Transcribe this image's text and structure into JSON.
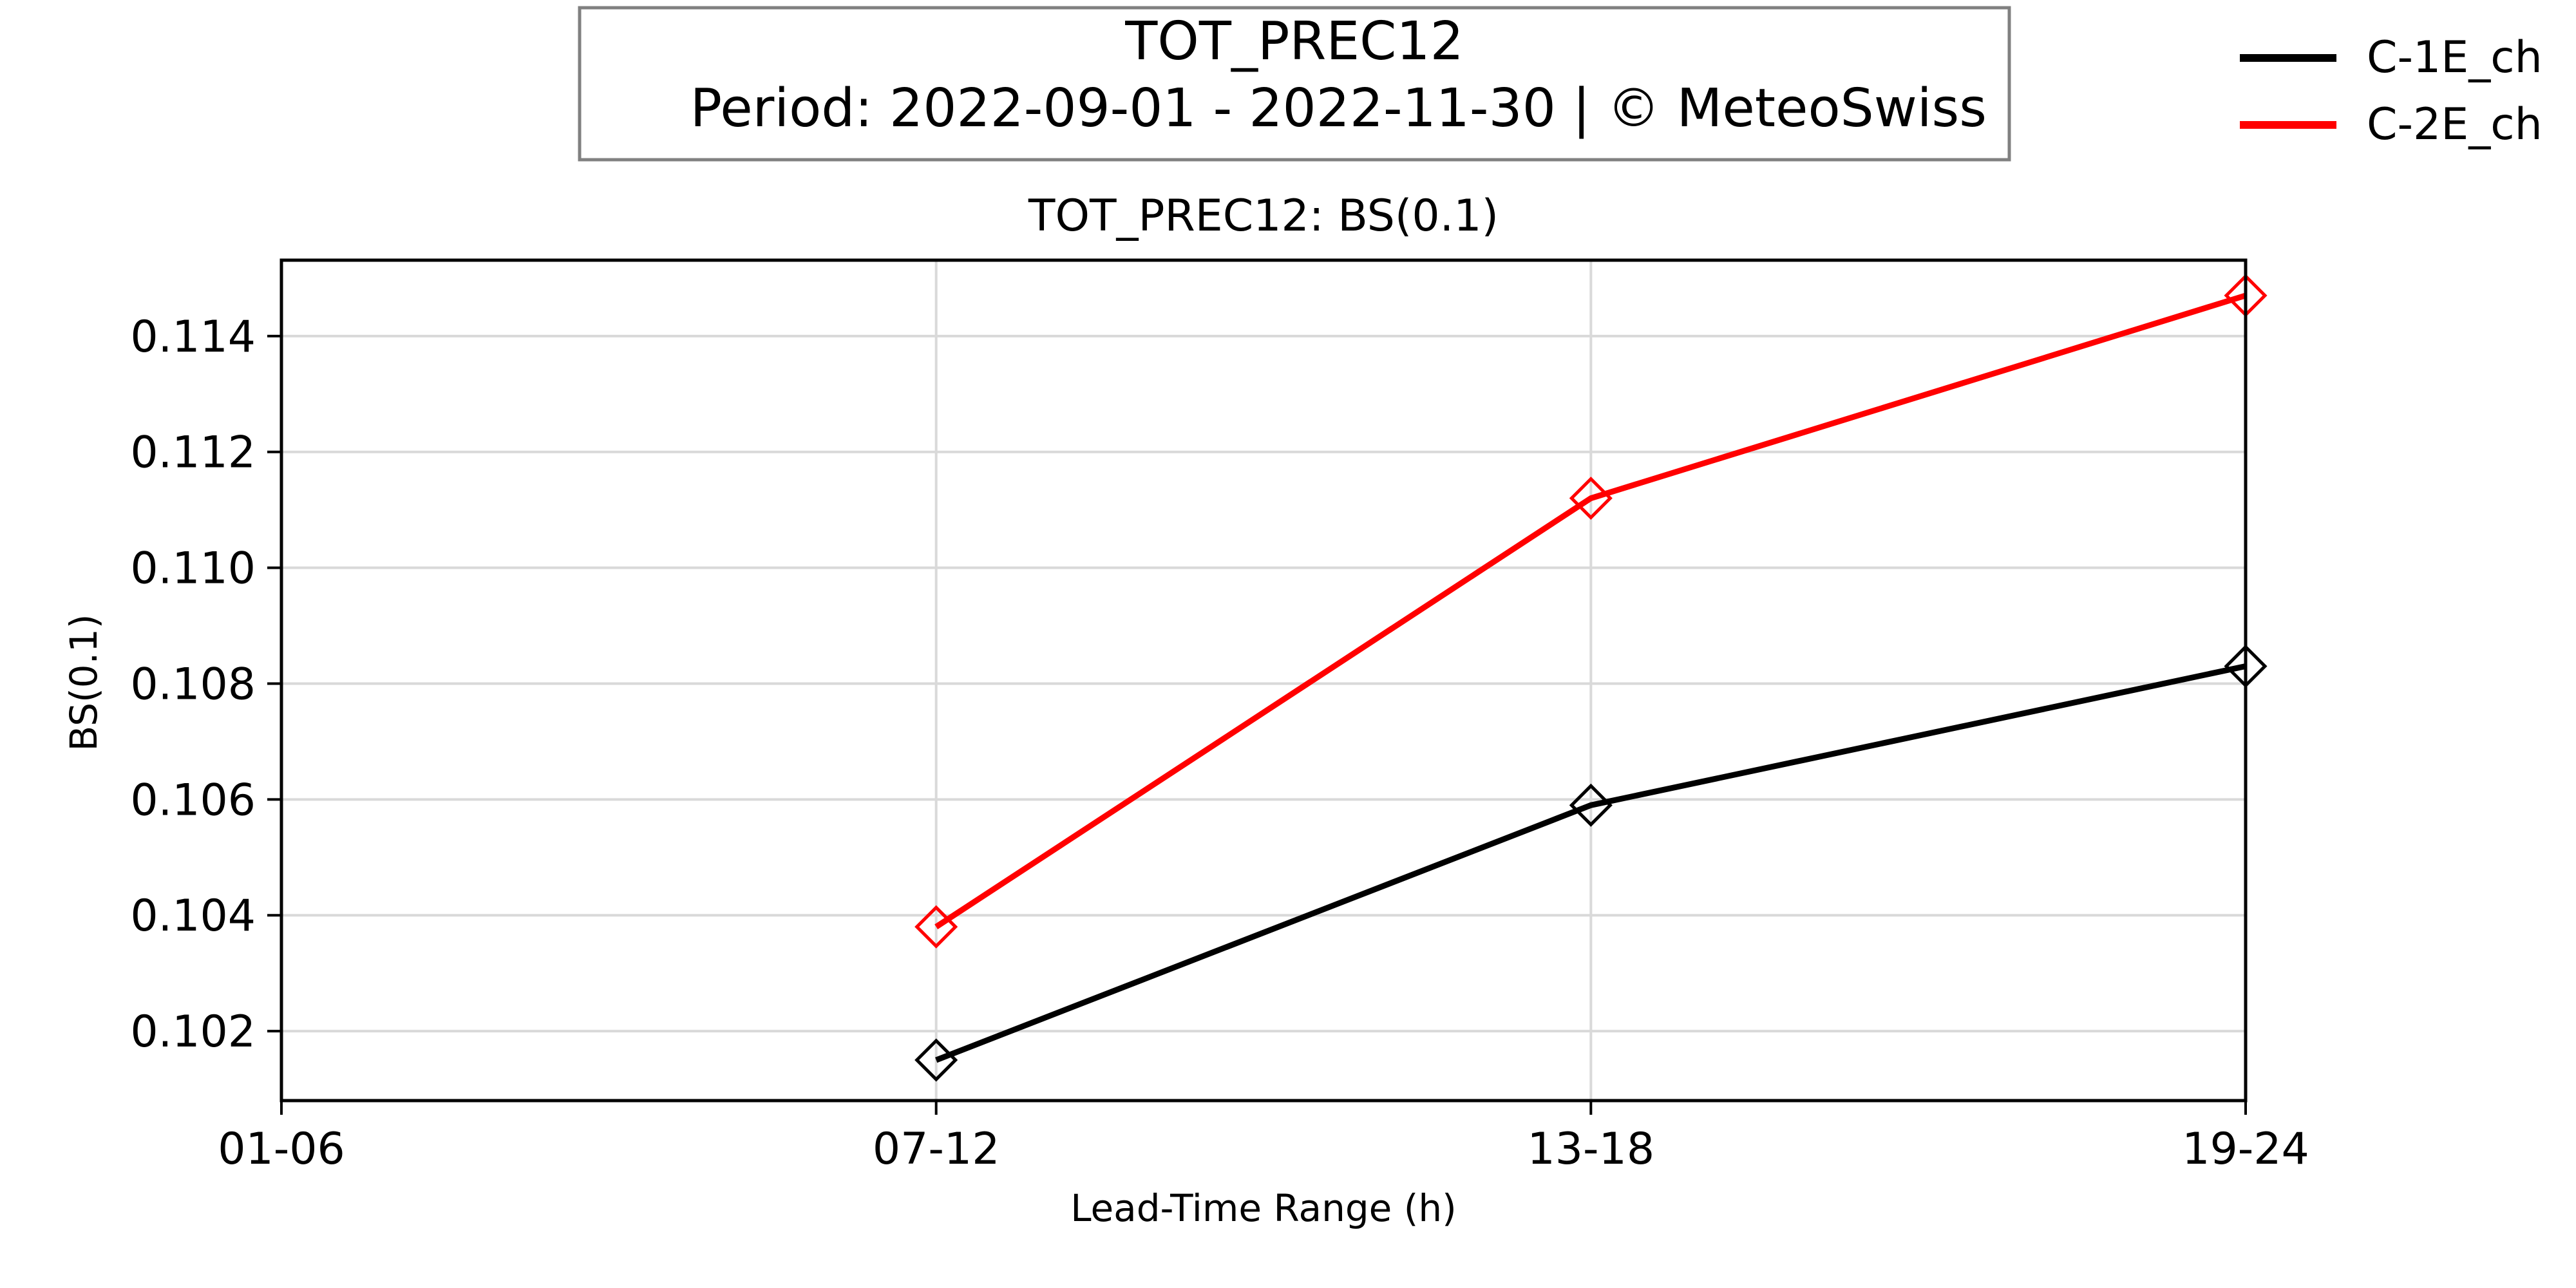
{
  "header": {
    "title": "TOT_PREC12",
    "subtitle": "Period: 2022-09-01 - 2022-11-30 | © MeteoSwiss"
  },
  "colors": {
    "C-1E_ch": "#000000",
    "C-2E_ch": "#ff0000",
    "grid": "#d9d9d9",
    "frame": "#000000",
    "header_border": "#808080"
  },
  "chart_data": {
    "type": "line",
    "title": "TOT_PREC12: BS(0.1)",
    "xlabel": "Lead-Time Range (h)",
    "ylabel": "BS(0.1)",
    "categories": [
      "01-06",
      "07-12",
      "13-18",
      "19-24"
    ],
    "ylim": [
      0.1008,
      0.11531
    ],
    "yticks": [
      "0.102",
      "0.104",
      "0.106",
      "0.108",
      "0.110",
      "0.112",
      "0.114"
    ],
    "marker": "diamond",
    "grid": true,
    "legend_position": "top-right, outside plot",
    "series": [
      {
        "name": "C-1E_ch",
        "values": [
          null,
          0.1015,
          0.1059,
          0.1083
        ]
      },
      {
        "name": "C-2E_ch",
        "values": [
          null,
          0.1038,
          0.1112,
          0.1147
        ]
      }
    ]
  }
}
